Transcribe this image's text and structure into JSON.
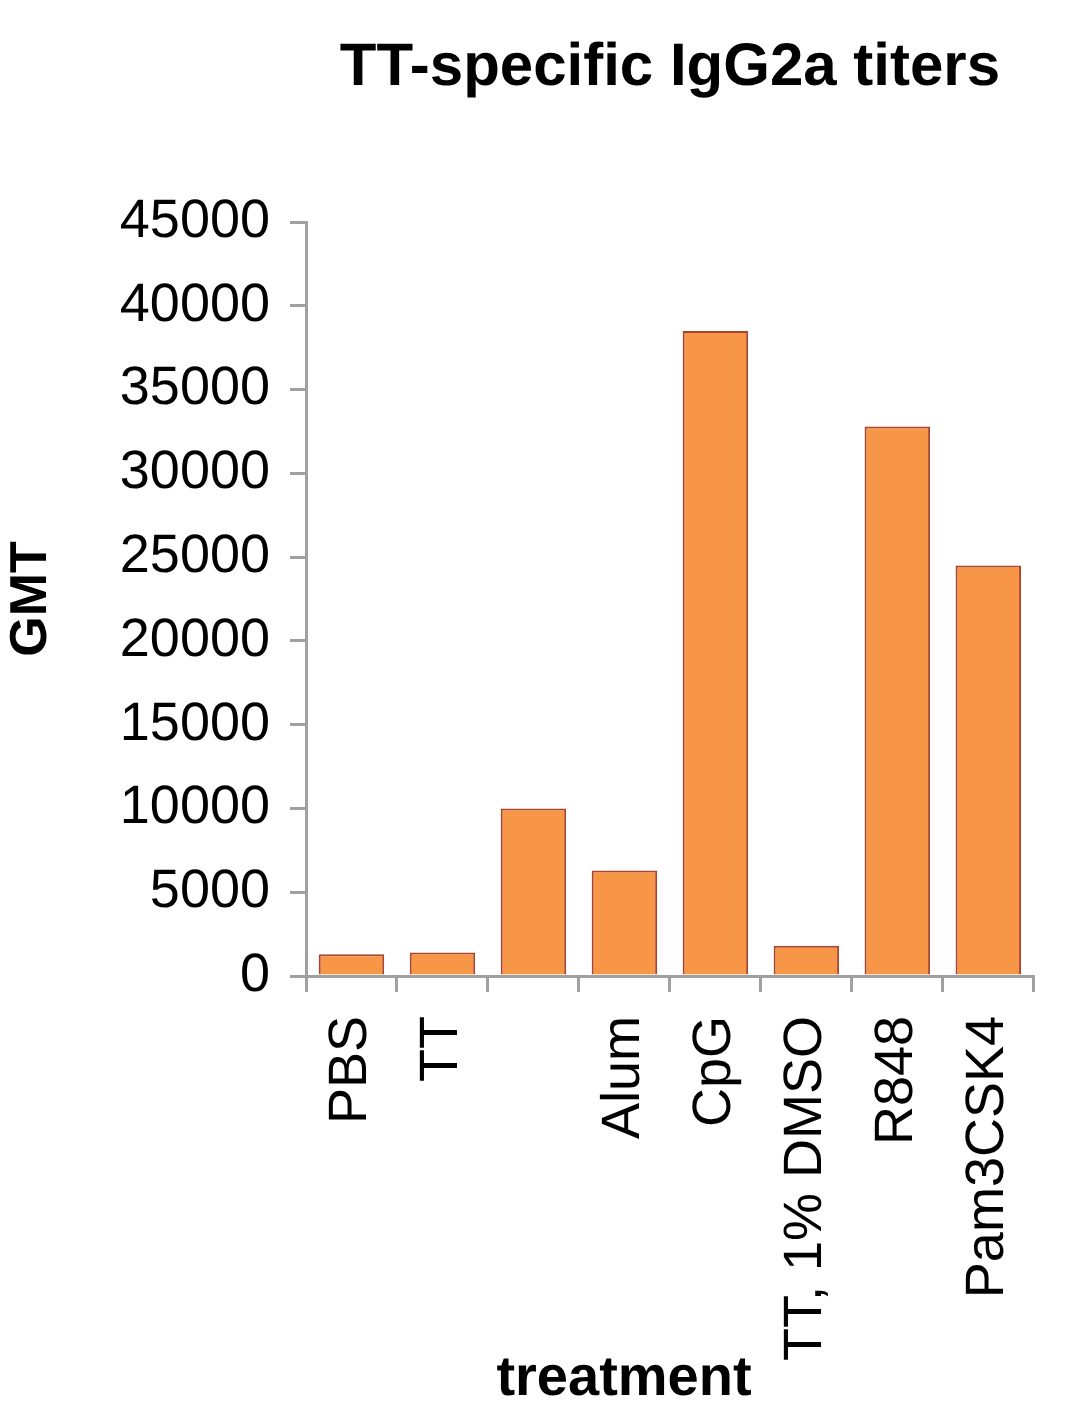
{
  "chart_data": {
    "type": "bar",
    "title": "TT-specific IgG2a titers",
    "xlabel": "treatment",
    "ylabel": "GMT",
    "categories": [
      "PBS",
      "TT",
      null,
      "Alum",
      "CpG",
      "TT, 1% DMSO",
      "R848",
      "Pam3CSK4"
    ],
    "values": [
      1300,
      1400,
      10000,
      6300,
      38500,
      1800,
      32800,
      24500
    ],
    "color": "#f79646",
    "ylim": [
      0,
      45000
    ],
    "yticks": [
      0,
      5000,
      10000,
      15000,
      20000,
      25000,
      30000,
      35000,
      40000,
      45000
    ]
  }
}
